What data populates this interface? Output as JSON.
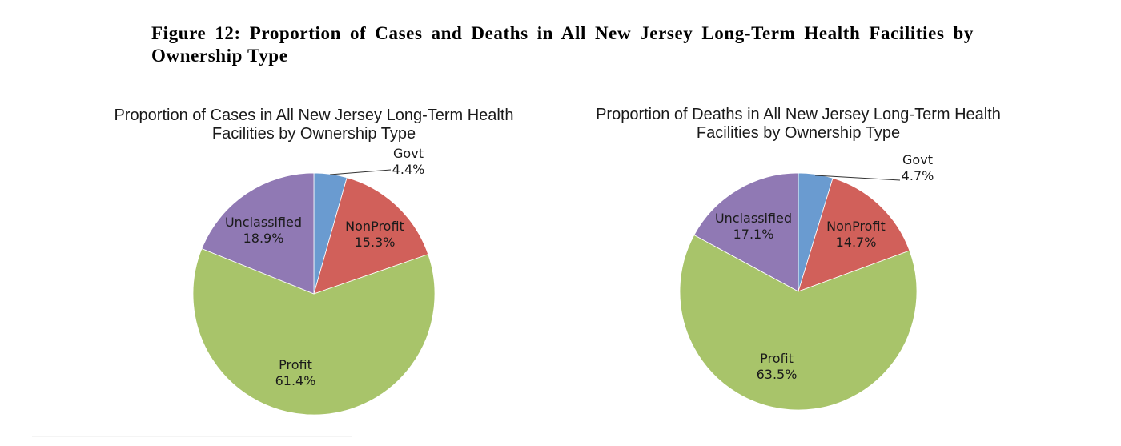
{
  "figure_title": "Figure 12: Proportion of Cases and Deaths in All New Jersey Long-Term Health Facilities by Ownership Type",
  "colors": {
    "Govt": "#6a9bd0",
    "NonProfit": "#d1605a",
    "Profit": "#a8c46a",
    "Unclassified": "#9079b4"
  },
  "chart_data": [
    {
      "type": "pie",
      "title_lines": [
        "Proportion of Cases in All New Jersey Long-Term Health",
        "Facilities by Ownership Type"
      ],
      "slices": [
        {
          "label": "Govt",
          "value": 4.4,
          "text": "4.4%"
        },
        {
          "label": "NonProfit",
          "value": 15.3,
          "text": "15.3%"
        },
        {
          "label": "Profit",
          "value": 61.4,
          "text": "61.4%"
        },
        {
          "label": "Unclassified",
          "value": 18.9,
          "text": "18.9%"
        }
      ]
    },
    {
      "type": "pie",
      "title_lines": [
        "Proportion of Deaths in All New Jersey Long-Term Health",
        "Facilities by Ownership Type"
      ],
      "slices": [
        {
          "label": "Govt",
          "value": 4.7,
          "text": "4.7%"
        },
        {
          "label": "NonProfit",
          "value": 14.7,
          "text": "14.7%"
        },
        {
          "label": "Profit",
          "value": 63.5,
          "text": "63.5%"
        },
        {
          "label": "Unclassified",
          "value": 17.1,
          "text": "17.1%"
        }
      ]
    }
  ]
}
